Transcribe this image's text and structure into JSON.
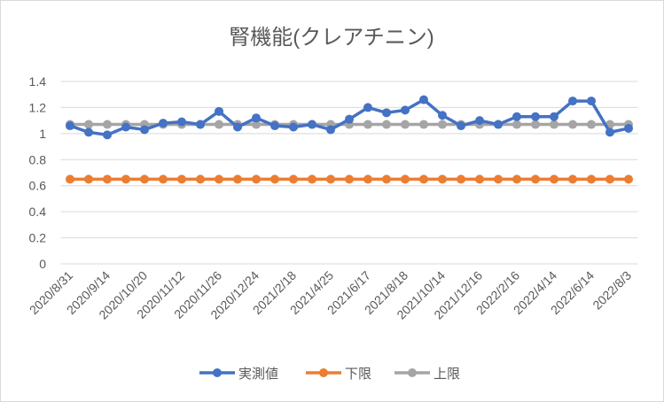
{
  "chart_data": {
    "type": "line",
    "title": "腎機能(クレアチニン)",
    "xlabel": "",
    "ylabel": "",
    "ylim": [
      0,
      1.4
    ],
    "yticks": [
      "0",
      "0.2",
      "0.4",
      "0.6",
      "0.8",
      "1",
      "1.2",
      "1.4"
    ],
    "grid": true,
    "legend_position": "bottom",
    "categories": [
      "2020/8/31",
      "",
      "2020/9/14",
      "",
      "2020/10/20",
      "",
      "2020/11/12",
      "",
      "2020/11/26",
      "",
      "2020/12/24",
      "",
      "2021/2/18",
      "",
      "2021/4/25",
      "",
      "2021/6/17",
      "",
      "2021/8/18",
      "",
      "2021/10/14",
      "",
      "2021/12/16",
      "",
      "2022/2/16",
      "",
      "2022/4/14",
      "",
      "2022/6/14",
      "",
      "2022/8/3"
    ],
    "series": [
      {
        "name": "実測値",
        "color": "#4472c4",
        "values": [
          1.06,
          1.01,
          0.99,
          1.05,
          1.03,
          1.08,
          1.09,
          1.07,
          1.17,
          1.05,
          1.12,
          1.06,
          1.05,
          1.07,
          1.03,
          1.11,
          1.2,
          1.16,
          1.18,
          1.26,
          1.14,
          1.06,
          1.1,
          1.07,
          1.13,
          1.13,
          1.13,
          1.25,
          1.25,
          1.01,
          1.04
        ]
      },
      {
        "name": "下限",
        "color": "#ed7d31",
        "values": [
          0.65,
          0.65,
          0.65,
          0.65,
          0.65,
          0.65,
          0.65,
          0.65,
          0.65,
          0.65,
          0.65,
          0.65,
          0.65,
          0.65,
          0.65,
          0.65,
          0.65,
          0.65,
          0.65,
          0.65,
          0.65,
          0.65,
          0.65,
          0.65,
          0.65,
          0.65,
          0.65,
          0.65,
          0.65,
          0.65,
          0.65
        ]
      },
      {
        "name": "上限",
        "color": "#a5a5a5",
        "values": [
          1.07,
          1.07,
          1.07,
          1.07,
          1.07,
          1.07,
          1.07,
          1.07,
          1.07,
          1.07,
          1.07,
          1.07,
          1.07,
          1.07,
          1.07,
          1.07,
          1.07,
          1.07,
          1.07,
          1.07,
          1.07,
          1.07,
          1.07,
          1.07,
          1.07,
          1.07,
          1.07,
          1.07,
          1.07,
          1.07,
          1.07
        ]
      }
    ]
  }
}
